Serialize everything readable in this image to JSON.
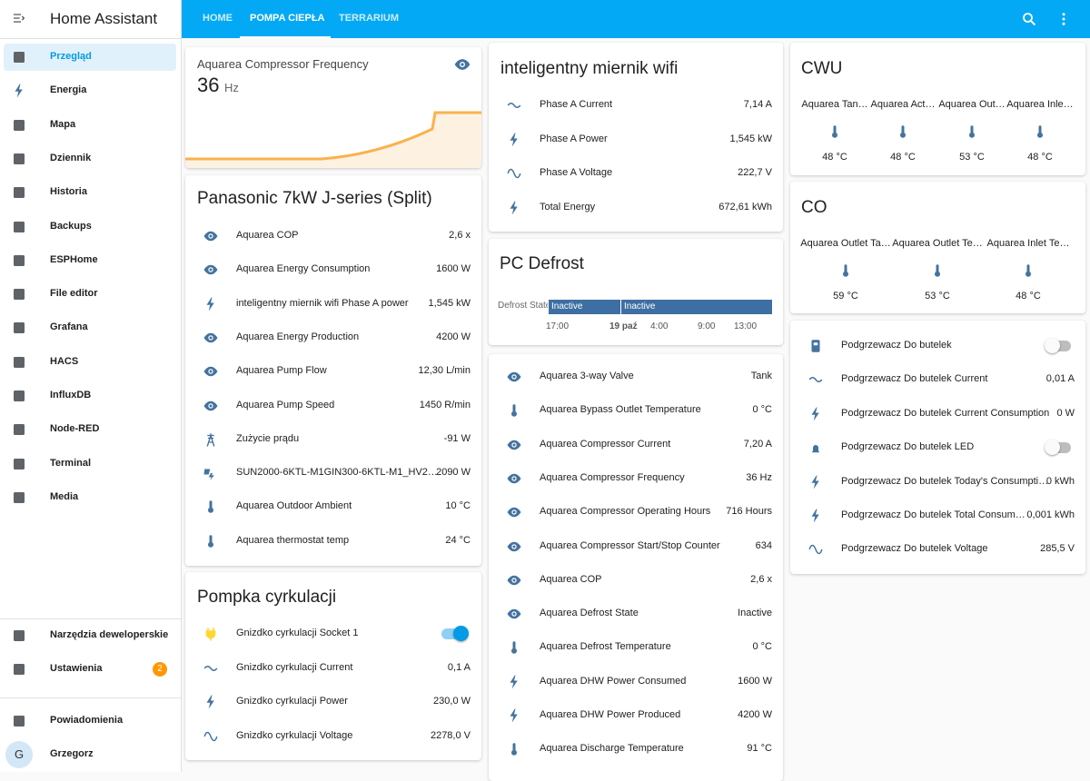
{
  "sidebar": {
    "title": "Home Assistant",
    "items": [
      "Przegląd",
      "Energia",
      "Mapa",
      "Dziennik",
      "Historia",
      "Backups",
      "ESPHome",
      "File editor",
      "Grafana",
      "HACS",
      "InfluxDB",
      "Node-RED",
      "Terminal",
      "Media"
    ],
    "tools": "Narzędzia deweloperskie",
    "settings": "Ustawienia",
    "settings_badge": "2",
    "notifications": "Powiadomienia",
    "user": "Grzegorz",
    "user_initial": "G"
  },
  "tabs": [
    "HOME",
    "POMPA CIEPŁA",
    "TERRARIUM"
  ],
  "sensor_card": {
    "name": "Aquarea Compressor Frequency",
    "value": "36",
    "unit": "Hz"
  },
  "cards": [
    {
      "title": "Panasonic 7kW J-series (Split)",
      "rows": [
        {
          "name": "Aquarea COP",
          "state": "2,6 x"
        },
        {
          "name": "Aquarea Energy Consumption",
          "state": "1600 W"
        },
        {
          "name": "inteligentny miernik wifi Phase A power",
          "state": "1,545 kW"
        },
        {
          "name": "Aquarea Energy Production",
          "state": "4200 W"
        },
        {
          "name": "Aquarea Pump Flow",
          "state": "12,30 L/min"
        },
        {
          "name": "Aquarea Pump Speed",
          "state": "1450 R/min"
        },
        {
          "name": "Zużycie prądu",
          "state": "-91 W"
        },
        {
          "name": "SUN2000-6KTL-M1GIN300-6KTL-M1_HV2…",
          "state": "2090 W"
        },
        {
          "name": "Aquarea Outdoor Ambient",
          "state": "10 °C"
        },
        {
          "name": "Aquarea thermostat temp",
          "state": "24 °C"
        }
      ]
    },
    {
      "title": "Pompka cyrkulacji",
      "rows": [
        {
          "name": "Gnizdko cyrkulacji Socket 1"
        },
        {
          "name": "Gnizdko cyrkulacji Current",
          "state": "0,1 A"
        },
        {
          "name": "Gnizdko cyrkulacji Power",
          "state": "230,0 W"
        },
        {
          "name": "Gnizdko cyrkulacji Voltage",
          "state": "2278,0 V"
        }
      ]
    },
    {
      "title": "inteligentny miernik wifi",
      "rows": [
        {
          "name": "Phase A Current",
          "state": "7,14 A"
        },
        {
          "name": "Phase A Power",
          "state": "1,545 kW"
        },
        {
          "name": "Phase A Voltage",
          "state": "222,7 V"
        },
        {
          "name": "Total Energy",
          "state": "672,61 kWh"
        }
      ]
    },
    {
      "rows": [
        {
          "name": "Aquarea 3-way Valve",
          "state": "Tank"
        },
        {
          "name": "Aquarea Bypass Outlet Temperature",
          "state": "0 °C"
        },
        {
          "name": "Aquarea Compressor Current",
          "state": "7,20 A"
        },
        {
          "name": "Aquarea Compressor Frequency",
          "state": "36 Hz"
        },
        {
          "name": "Aquarea Compressor Operating Hours",
          "state": "716 Hours"
        },
        {
          "name": "Aquarea Compressor Start/Stop Counter",
          "state": "634"
        },
        {
          "name": "Aquarea COP",
          "state": "2,6 x"
        },
        {
          "name": "Aquarea Defrost State",
          "state": "Inactive"
        },
        {
          "name": "Aquarea Defrost Temperature",
          "state": "0 °C"
        },
        {
          "name": "Aquarea DHW Power Consumed",
          "state": "1600 W"
        },
        {
          "name": "Aquarea DHW Power Produced",
          "state": "4200 W"
        },
        {
          "name": "Aquarea Discharge Temperature",
          "state": "91 °C"
        }
      ]
    },
    {
      "rows": [
        {
          "name": "Podgrzewacz Do butelek"
        },
        {
          "name": "Podgrzewacz Do butelek Current",
          "state": "0,01 A"
        },
        {
          "name": "Podgrzewacz Do butelek Current Consumption",
          "state": "0 W"
        },
        {
          "name": "Podgrzewacz Do butelek LED"
        },
        {
          "name": "Podgrzewacz Do butelek Today's Consumpti…",
          "state": "0 kWh"
        },
        {
          "name": "Podgrzewacz Do butelek Total Consum…",
          "state": "0,001 kWh"
        },
        {
          "name": "Podgrzewacz Do butelek Voltage",
          "state": "285,5 V"
        }
      ]
    }
  ],
  "defrost": {
    "title": "PC Defrost",
    "label": "Defrost State",
    "segments": [
      "Inactive",
      "Inactive"
    ],
    "axis": [
      "17:00",
      "19 paź",
      "4:00",
      "9:00",
      "13:00"
    ]
  },
  "glances": [
    {
      "title": "CWU",
      "items": [
        {
          "name": "Aquarea Tan…",
          "state": "48 °C"
        },
        {
          "name": "Aquarea Act…",
          "state": "48 °C"
        },
        {
          "name": "Aquarea Out…",
          "state": "53 °C"
        },
        {
          "name": "Aquarea Inle…",
          "state": "48 °C"
        }
      ]
    },
    {
      "title": "CO",
      "items": [
        {
          "name": "Aquarea Outlet Ta…",
          "state": "59 °C"
        },
        {
          "name": "Aquarea Outlet Te…",
          "state": "53 °C"
        },
        {
          "name": "Aquarea Inlet Te…",
          "state": "48 °C"
        }
      ]
    }
  ]
}
